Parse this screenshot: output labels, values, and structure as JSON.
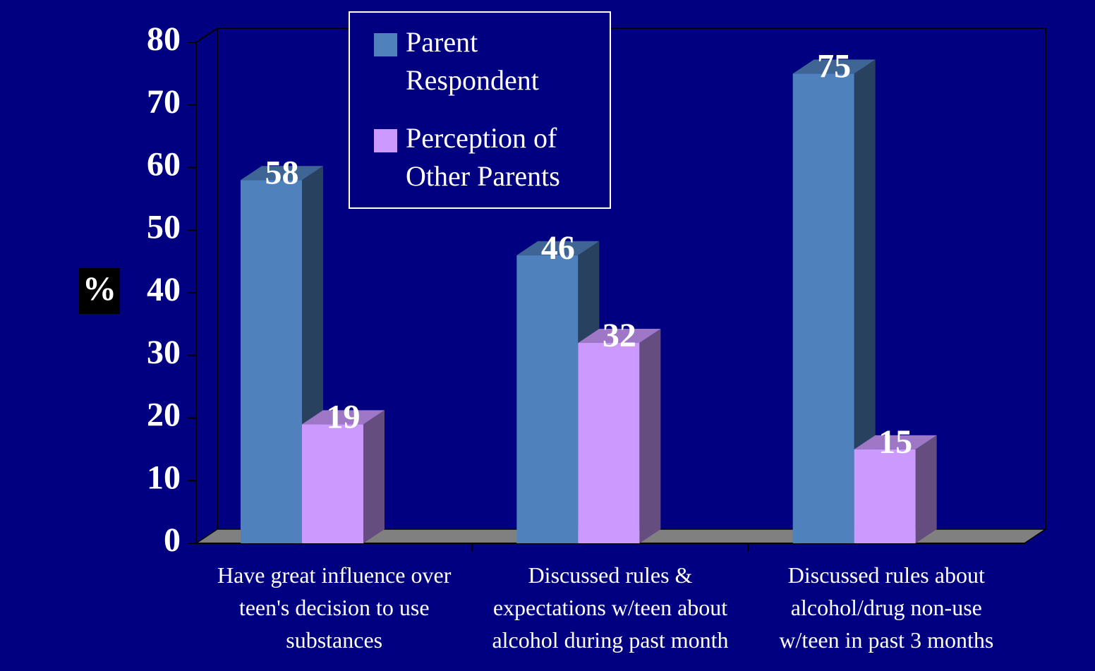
{
  "chart_data": {
    "type": "bar3d",
    "y_label": "%",
    "categories": [
      "Have great influence over\nteen's decision to use\nsubstances",
      "Discussed rules &\nexpectations w/teen about\nalcohol during past month",
      "Discussed rules about\nalcohol/drug non-use\nw/teen in past 3 months"
    ],
    "series": [
      {
        "name": "Parent Respondent",
        "color": "#4f81bd",
        "values": [
          58,
          46,
          75
        ]
      },
      {
        "name": "Perception of Other Parents",
        "color": "#cc99ff",
        "values": [
          19,
          32,
          15
        ]
      }
    ],
    "ylim": [
      0,
      80
    ],
    "yticks": [
      0,
      10,
      20,
      30,
      40,
      50,
      60,
      70,
      80
    ],
    "legend": "top-center"
  }
}
